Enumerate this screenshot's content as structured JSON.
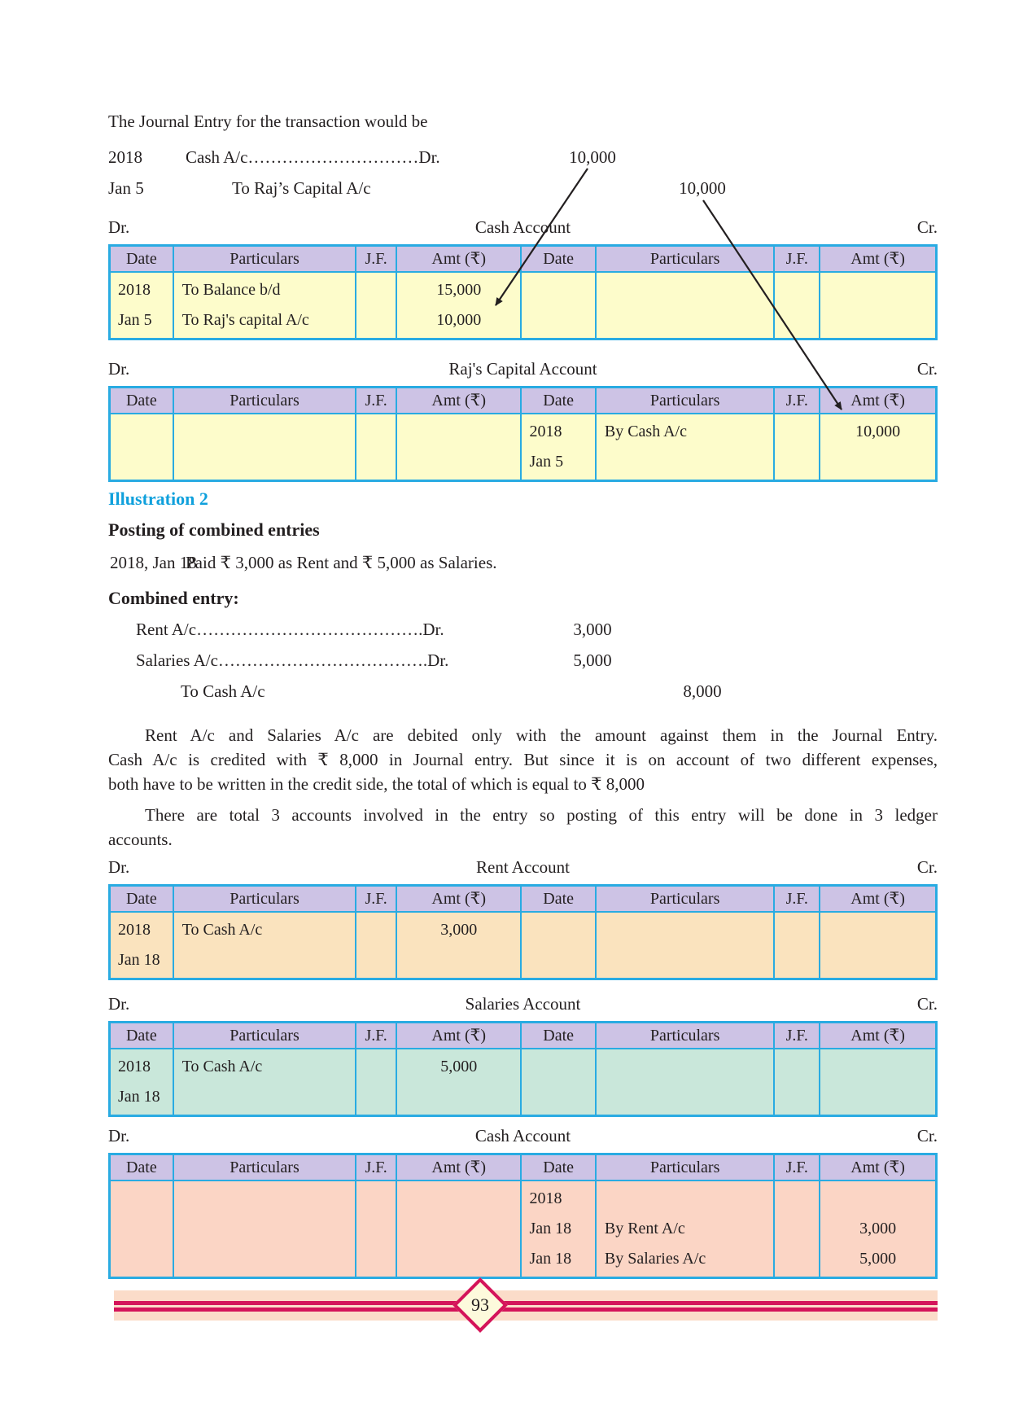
{
  "intro": "The Journal Entry for the transaction would be",
  "labels": {
    "dr": "Dr.",
    "cr": "Cr."
  },
  "journal": {
    "row1": {
      "date": "2018",
      "text": "Cash A/c…………………………Dr.",
      "amount": "10,000"
    },
    "row2": {
      "date": "Jan 5",
      "text": "To Raj’s Capital A/c",
      "amount": "10,000"
    }
  },
  "illustration": {
    "heading": "Illustration 2",
    "subheading": "Posting of combined entries",
    "statement_date": "2018,  Jan 18",
    "statement_text": "Paid ₹  3,000 as Rent and  ₹ 5,000 as Salaries.",
    "combined_label": "Combined entry:",
    "entry_rows": [
      {
        "text": "Rent A/c………………………………….Dr.",
        "amount": "3,000",
        "side": "debit"
      },
      {
        "text": "Salaries A/c……………………………….Dr.",
        "amount": "5,000",
        "side": "debit"
      },
      {
        "text": "To Cash A/c",
        "amount": "8,000",
        "side": "credit"
      }
    ]
  },
  "para1": [
    "Rent A/c and Salaries A/c are debited only with the amount against them in the Journal Entry.",
    "Cash A/c is credited with  ₹ 8,000 in Journal entry. But since it is on account of two different expenses,",
    "both have to be written in the credit side, the total of which is equal to ₹ 8,000"
  ],
  "para2": [
    "There are total 3 accounts involved in the entry so posting of this entry will be done in 3 ledger",
    "accounts."
  ],
  "ledger_headers": [
    "Date",
    "Particulars",
    "J.F.",
    "Amt (₹)",
    "Date",
    "Particulars",
    "J.F.",
    "Amt (₹)"
  ],
  "ledgers": [
    {
      "title": "Cash Account",
      "body_bg": "#FDFCCB",
      "columns": [
        [
          "2018",
          "Jan 5"
        ],
        [
          "To Balance b/d",
          "To Raj's capital A/c"
        ],
        [],
        [
          "15,000",
          "10,000"
        ],
        [],
        [],
        [],
        []
      ]
    },
    {
      "title": "Raj's Capital Account",
      "body_bg": "#FDFCCB",
      "columns": [
        [],
        [],
        [],
        [],
        [
          "2018",
          "Jan 5"
        ],
        [
          "By Cash A/c"
        ],
        [],
        [
          "10,000"
        ]
      ]
    },
    {
      "title": "Rent Account",
      "body_bg": "#FAE3BE",
      "columns": [
        [
          "2018",
          "Jan 18"
        ],
        [
          "To Cash A/c"
        ],
        [],
        [
          "3,000"
        ],
        [],
        [],
        [],
        []
      ]
    },
    {
      "title": "Salaries Account",
      "body_bg": "#C9E7DA",
      "columns": [
        [
          "2018",
          "Jan 18"
        ],
        [
          "To Cash A/c"
        ],
        [],
        [
          "5,000"
        ],
        [],
        [],
        [],
        []
      ]
    },
    {
      "title": "Cash Account",
      "body_bg": "#FBD5C5",
      "columns": [
        [],
        [],
        [],
        [],
        [
          "2018",
          "Jan 18",
          "Jan 18"
        ],
        [
          "",
          "By Rent A/c",
          "By Salaries A/c"
        ],
        [],
        [
          "",
          "3,000",
          "5,000"
        ]
      ]
    }
  ],
  "footer": {
    "page_number": "93"
  },
  "colors": {
    "table_border": "#29ABE2",
    "header_bg": "#CDC3E5",
    "yellow_bg": "#FDFCCB",
    "orange_bg": "#FAE3BE",
    "teal_bg": "#C9E7DA",
    "pink_bg": "#FBD5C5",
    "footer_band_bg": "#FBDCC9",
    "magenta": "#D4145A",
    "diamond_bg": "#FDFADC",
    "heading_blue": "#0FA0DC",
    "text": "#231F20"
  }
}
